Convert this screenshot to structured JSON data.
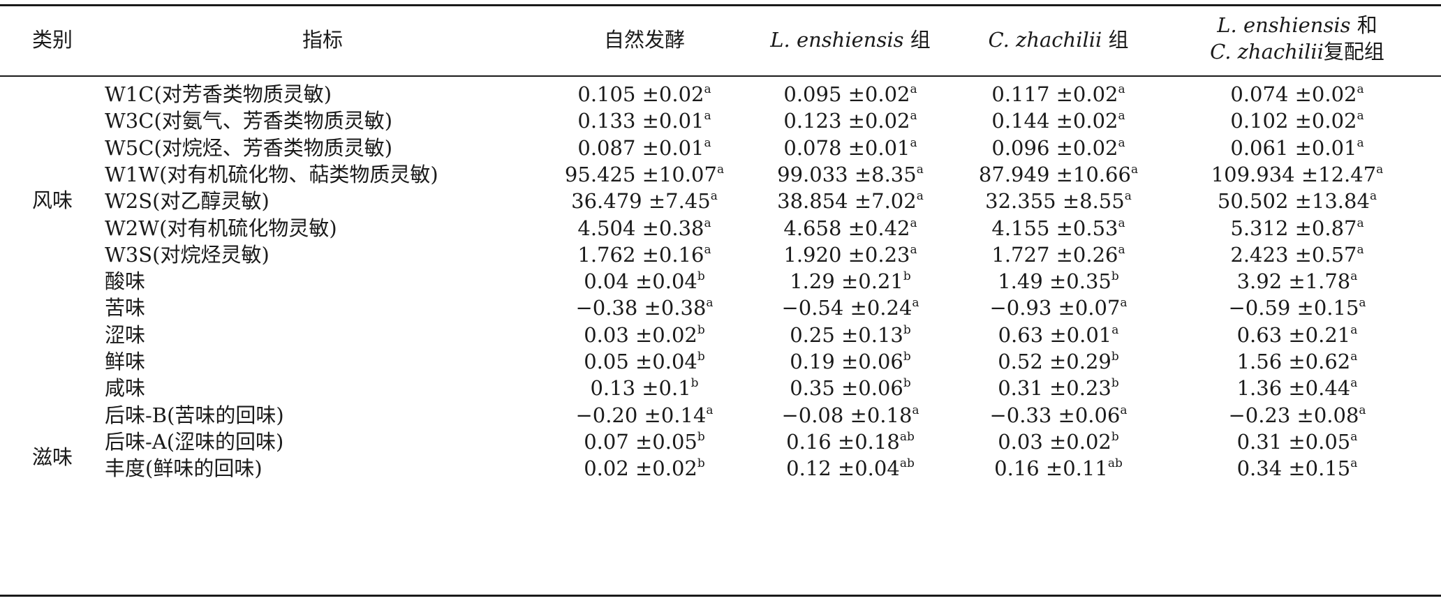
{
  "headers": {
    "category": "类别",
    "indicator": "指标",
    "natural": "自然发酵",
    "le_name": "L. enshiensis",
    "le_suffix": "组",
    "cz_name": "C. zhachilii",
    "cz_suffix": "组",
    "combo_line1_name": "L. enshiensis",
    "combo_line1_suffix": "和",
    "combo_line2_name": "C. zhachilii",
    "combo_line2_suffix": "复配组"
  },
  "groups": [
    {
      "label": "风味"
    },
    {
      "label": "滋味"
    }
  ],
  "rows": [
    {
      "indicator": "W1C(对芳香类物质灵敏)",
      "cells": [
        {
          "v": "0.105 ±0.02",
          "s": "a"
        },
        {
          "v": "0.095 ±0.02",
          "s": "a"
        },
        {
          "v": "0.117 ±0.02",
          "s": "a"
        },
        {
          "v": "0.074 ±0.02",
          "s": "a"
        }
      ]
    },
    {
      "indicator": "W3C(对氨气、芳香类物质灵敏)",
      "cells": [
        {
          "v": "0.133 ±0.01",
          "s": "a"
        },
        {
          "v": "0.123 ±0.02",
          "s": "a"
        },
        {
          "v": "0.144 ±0.02",
          "s": "a"
        },
        {
          "v": "0.102 ±0.02",
          "s": "a"
        }
      ]
    },
    {
      "indicator": "W5C(对烷烃、芳香类物质灵敏)",
      "cells": [
        {
          "v": "0.087 ±0.01",
          "s": "a"
        },
        {
          "v": "0.078 ±0.01",
          "s": "a"
        },
        {
          "v": "0.096 ±0.02",
          "s": "a"
        },
        {
          "v": "0.061 ±0.01",
          "s": "a"
        }
      ]
    },
    {
      "indicator": "W1W(对有机硫化物、萜类物质灵敏)",
      "cells": [
        {
          "v": "95.425 ±10.07",
          "s": "a"
        },
        {
          "v": "99.033 ±8.35",
          "s": "a"
        },
        {
          "v": "87.949 ±10.66",
          "s": "a"
        },
        {
          "v": "109.934 ±12.47",
          "s": "a"
        }
      ]
    },
    {
      "indicator": "W2S(对乙醇灵敏)",
      "cells": [
        {
          "v": "36.479 ±7.45",
          "s": "a"
        },
        {
          "v": "38.854 ±7.02",
          "s": "a"
        },
        {
          "v": "32.355 ±8.55",
          "s": "a"
        },
        {
          "v": "50.502 ±13.84",
          "s": "a"
        }
      ]
    },
    {
      "indicator": "W2W(对有机硫化物灵敏)",
      "cells": [
        {
          "v": "4.504 ±0.38",
          "s": "a"
        },
        {
          "v": "4.658 ±0.42",
          "s": "a"
        },
        {
          "v": "4.155 ±0.53",
          "s": "a"
        },
        {
          "v": "5.312 ±0.87",
          "s": "a"
        }
      ]
    },
    {
      "indicator": "W3S(对烷烃灵敏)",
      "cells": [
        {
          "v": "1.762 ±0.16",
          "s": "a"
        },
        {
          "v": "1.920 ±0.23",
          "s": "a"
        },
        {
          "v": "1.727 ±0.26",
          "s": "a"
        },
        {
          "v": "2.423 ±0.57",
          "s": "a"
        }
      ]
    },
    {
      "indicator": "酸味",
      "cells": [
        {
          "v": "0.04 ±0.04",
          "s": "b"
        },
        {
          "v": "1.29 ±0.21",
          "s": "b"
        },
        {
          "v": "1.49 ±0.35",
          "s": "b"
        },
        {
          "v": "3.92 ±1.78",
          "s": "a"
        }
      ]
    },
    {
      "indicator": "苦味",
      "cells": [
        {
          "v": "−0.38 ±0.38",
          "s": "a"
        },
        {
          "v": "−0.54 ±0.24",
          "s": "a"
        },
        {
          "v": "−0.93 ±0.07",
          "s": "a"
        },
        {
          "v": "−0.59 ±0.15",
          "s": "a"
        }
      ]
    },
    {
      "indicator": "涩味",
      "cells": [
        {
          "v": "0.03 ±0.02",
          "s": "b"
        },
        {
          "v": "0.25 ±0.13",
          "s": "b"
        },
        {
          "v": "0.63 ±0.01",
          "s": "a"
        },
        {
          "v": "0.63 ±0.21",
          "s": "a"
        }
      ]
    },
    {
      "indicator": "鲜味",
      "cells": [
        {
          "v": "0.05 ±0.04",
          "s": "b"
        },
        {
          "v": "0.19 ±0.06",
          "s": "b"
        },
        {
          "v": "0.52 ±0.29",
          "s": "b"
        },
        {
          "v": "1.56 ±0.62",
          "s": "a"
        }
      ]
    },
    {
      "indicator": "咸味",
      "cells": [
        {
          "v": "0.13 ±0.1",
          "s": "b"
        },
        {
          "v": "0.35 ±0.06",
          "s": "b"
        },
        {
          "v": "0.31 ±0.23",
          "s": "b"
        },
        {
          "v": "1.36 ±0.44",
          "s": "a"
        }
      ]
    },
    {
      "indicator": "后味-B(苦味的回味)",
      "cells": [
        {
          "v": "−0.20 ±0.14",
          "s": "a"
        },
        {
          "v": "−0.08 ±0.18",
          "s": "a"
        },
        {
          "v": "−0.33 ±0.06",
          "s": "a"
        },
        {
          "v": "−0.23 ±0.08",
          "s": "a"
        }
      ]
    },
    {
      "indicator": "后味-A(涩味的回味)",
      "cells": [
        {
          "v": "0.07 ±0.05",
          "s": "b"
        },
        {
          "v": "0.16 ±0.18",
          "s": "ab"
        },
        {
          "v": "0.03 ±0.02",
          "s": "b"
        },
        {
          "v": "0.31 ±0.05",
          "s": "a"
        }
      ]
    },
    {
      "indicator": "丰度(鲜味的回味)",
      "cells": [
        {
          "v": "0.02 ±0.02",
          "s": "b"
        },
        {
          "v": "0.12 ±0.04",
          "s": "ab"
        },
        {
          "v": "0.16 ±0.11",
          "s": "ab"
        },
        {
          "v": "0.34 ±0.15",
          "s": "a"
        }
      ]
    }
  ]
}
